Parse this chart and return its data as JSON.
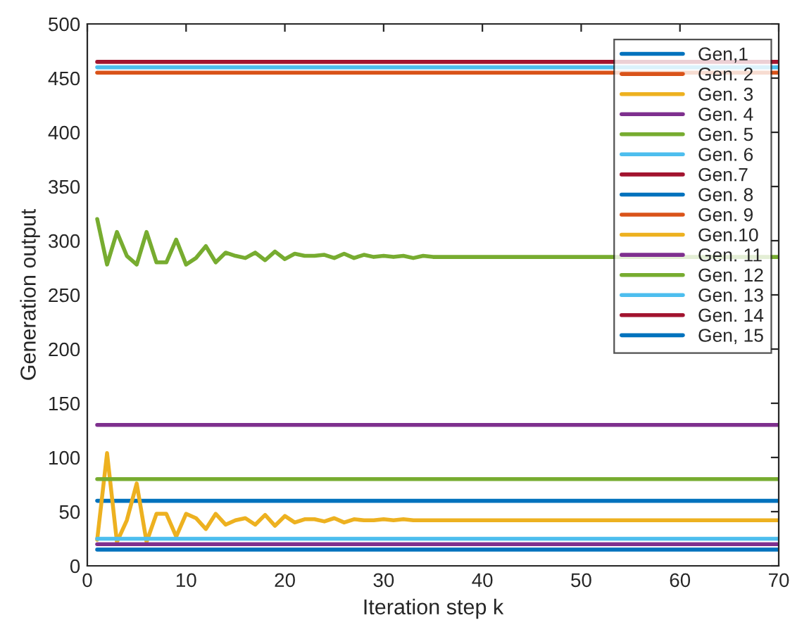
{
  "chart_data": {
    "type": "line",
    "xlabel": "Iteration step k",
    "ylabel": "Generation output",
    "xlim": [
      0,
      70
    ],
    "ylim": [
      0,
      500
    ],
    "xticks": [
      0,
      10,
      20,
      30,
      40,
      50,
      60,
      70
    ],
    "yticks": [
      0,
      50,
      100,
      150,
      200,
      250,
      300,
      350,
      400,
      450,
      500
    ],
    "grid": false,
    "legend": "top right",
    "line_style": "solid",
    "marker": "none",
    "series": [
      {
        "name": "Gen,1",
        "color": "#0072bd"
      },
      {
        "name": "Gen. 2",
        "color": "#d95319",
        "x": [
          1,
          70
        ],
        "values": [
          455,
          455
        ]
      },
      {
        "name": "Gen. 3",
        "color": "#edb120"
      },
      {
        "name": "Gen. 4",
        "color": "#7e2f8e",
        "x": [
          1,
          70
        ],
        "values": [
          130,
          130
        ]
      },
      {
        "name": "Gen. 5",
        "color": "#77ac30",
        "x": [
          1,
          2,
          3,
          4,
          5,
          6,
          7,
          8,
          9,
          10,
          11,
          12,
          13,
          14,
          15,
          16,
          17,
          18,
          19,
          20,
          21,
          22,
          23,
          24,
          25,
          26,
          27,
          28,
          29,
          30,
          31,
          32,
          33,
          34,
          35,
          40,
          45,
          50,
          70
        ],
        "values": [
          320,
          278,
          308,
          286,
          278,
          308,
          280,
          280,
          301,
          278,
          284,
          295,
          280,
          289,
          286,
          284,
          289,
          282,
          290,
          283,
          288,
          286,
          286,
          287,
          284,
          288,
          284,
          287,
          285,
          286,
          285,
          286,
          284,
          286,
          285,
          285,
          285,
          285,
          285
        ]
      },
      {
        "name": "Gen. 6",
        "color": "#4dbeee",
        "x": [
          1,
          70
        ],
        "values": [
          460,
          460
        ]
      },
      {
        "name": "Gen.7",
        "color": "#a2142f",
        "x": [
          1,
          70
        ],
        "values": [
          465,
          465
        ]
      },
      {
        "name": "Gen. 8",
        "color": "#0072bd",
        "x": [
          1,
          70
        ],
        "values": [
          60,
          60
        ]
      },
      {
        "name": "Gen. 9",
        "color": "#d95319"
      },
      {
        "name": "Gen.10",
        "color": "#edb120",
        "x": [
          1,
          2,
          3,
          4,
          5,
          6,
          7,
          8,
          9,
          10,
          11,
          12,
          13,
          14,
          15,
          16,
          17,
          18,
          19,
          20,
          21,
          22,
          23,
          24,
          25,
          26,
          27,
          28,
          29,
          30,
          31,
          32,
          33,
          34,
          35,
          40,
          45,
          50,
          55,
          60,
          65,
          70
        ],
        "values": [
          24,
          104,
          22,
          42,
          76,
          22,
          48,
          48,
          27,
          48,
          44,
          34,
          48,
          38,
          42,
          44,
          38,
          47,
          37,
          46,
          40,
          43,
          43,
          41,
          44,
          40,
          43,
          42,
          42,
          43,
          42,
          43,
          42,
          42,
          42,
          42,
          42,
          42,
          42,
          42,
          42,
          42
        ]
      },
      {
        "name": "Gen. 11",
        "color": "#7e2f8e",
        "x": [
          1,
          70
        ],
        "values": [
          20,
          20
        ]
      },
      {
        "name": "Gen. 12",
        "color": "#77ac30",
        "x": [
          1,
          70
        ],
        "values": [
          80,
          80
        ]
      },
      {
        "name": "Gen. 13",
        "color": "#4dbeee",
        "x": [
          1,
          70
        ],
        "values": [
          25,
          25
        ]
      },
      {
        "name": "Gen. 14",
        "color": "#a2142f"
      },
      {
        "name": "Gen, 15",
        "color": "#0072bd",
        "x": [
          1,
          70
        ],
        "values": [
          15,
          15
        ]
      }
    ]
  }
}
